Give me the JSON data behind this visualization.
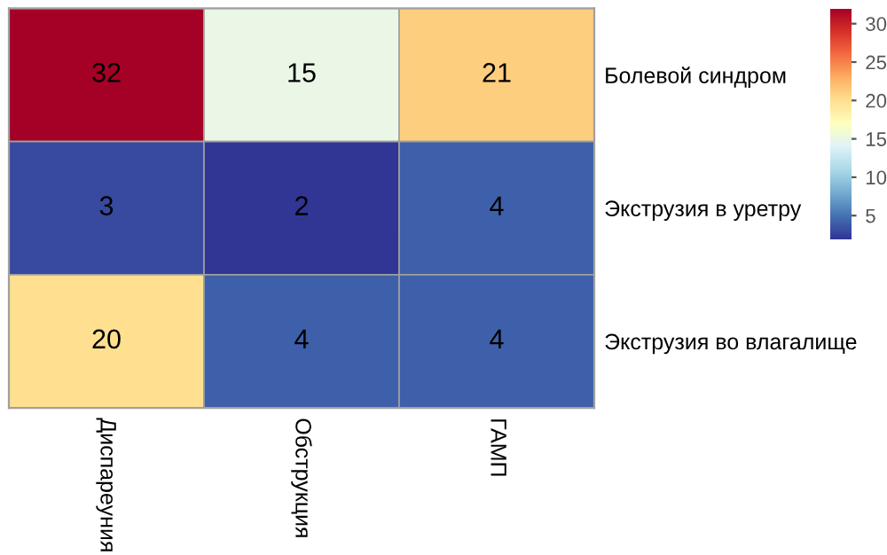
{
  "chart_data": {
    "type": "heatmap",
    "categories": [
      "Диспареуния",
      "Обструкция",
      "ГАМП"
    ],
    "y_categories": [
      "Болевой синдром",
      "Экструзия в уретру",
      "Экструзия во влагалище"
    ],
    "cells": [
      [
        32,
        15,
        21
      ],
      [
        3,
        2,
        4
      ],
      [
        20,
        4,
        4
      ]
    ],
    "data_labels": true,
    "clim": [
      2,
      32
    ],
    "cticks": [
      5,
      10,
      15,
      20,
      25,
      30
    ]
  }
}
